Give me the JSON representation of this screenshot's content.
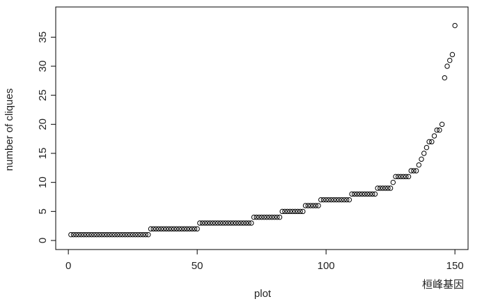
{
  "chart_data": {
    "type": "scatter",
    "x_label": "plot",
    "y_label": "number of cliques",
    "watermark": "桓峰基因",
    "x": [
      1,
      2,
      3,
      4,
      5,
      6,
      7,
      8,
      9,
      10,
      11,
      12,
      13,
      14,
      15,
      16,
      17,
      18,
      19,
      20,
      21,
      22,
      23,
      24,
      25,
      26,
      27,
      28,
      29,
      30,
      31,
      32,
      33,
      34,
      35,
      36,
      37,
      38,
      39,
      40,
      41,
      42,
      43,
      44,
      45,
      46,
      47,
      48,
      49,
      50,
      51,
      52,
      53,
      54,
      55,
      56,
      57,
      58,
      59,
      60,
      61,
      62,
      63,
      64,
      65,
      66,
      67,
      68,
      69,
      70,
      71,
      72,
      73,
      74,
      75,
      76,
      77,
      78,
      79,
      80,
      81,
      82,
      83,
      84,
      85,
      86,
      87,
      88,
      89,
      90,
      91,
      92,
      93,
      94,
      95,
      96,
      97,
      98,
      99,
      100,
      101,
      102,
      103,
      104,
      105,
      106,
      107,
      108,
      109,
      110,
      111,
      112,
      113,
      114,
      115,
      116,
      117,
      118,
      119,
      120,
      121,
      122,
      123,
      124,
      125,
      126,
      127,
      128,
      129,
      130,
      131,
      132,
      133,
      134,
      135,
      136,
      137,
      138,
      139,
      140,
      141,
      142,
      143,
      144,
      145,
      146,
      147,
      148,
      149,
      150
    ],
    "values": [
      1,
      1,
      1,
      1,
      1,
      1,
      1,
      1,
      1,
      1,
      1,
      1,
      1,
      1,
      1,
      1,
      1,
      1,
      1,
      1,
      1,
      1,
      1,
      1,
      1,
      1,
      1,
      1,
      1,
      1,
      1,
      2,
      2,
      2,
      2,
      2,
      2,
      2,
      2,
      2,
      2,
      2,
      2,
      2,
      2,
      2,
      2,
      2,
      2,
      2,
      3,
      3,
      3,
      3,
      3,
      3,
      3,
      3,
      3,
      3,
      3,
      3,
      3,
      3,
      3,
      3,
      3,
      3,
      3,
      3,
      3,
      4,
      4,
      4,
      4,
      4,
      4,
      4,
      4,
      4,
      4,
      4,
      5,
      5,
      5,
      5,
      5,
      5,
      5,
      5,
      5,
      6,
      6,
      6,
      6,
      6,
      6,
      7,
      7,
      7,
      7,
      7,
      7,
      7,
      7,
      7,
      7,
      7,
      7,
      8,
      8,
      8,
      8,
      8,
      8,
      8,
      8,
      8,
      8,
      9,
      9,
      9,
      9,
      9,
      9,
      10,
      11,
      11,
      11,
      11,
      11,
      11,
      12,
      12,
      12,
      13,
      14,
      15,
      16,
      17,
      17,
      18,
      19,
      19,
      20,
      28,
      30,
      31,
      32,
      37
    ],
    "color": "#000000",
    "xlim": [
      -4.9,
      155.1
    ],
    "ylim": [
      -1.56,
      40.2
    ],
    "xticks": [
      0,
      50,
      100,
      150
    ],
    "yticks": [
      0,
      5,
      10,
      15,
      20,
      25,
      30,
      35
    ],
    "grid": false
  }
}
